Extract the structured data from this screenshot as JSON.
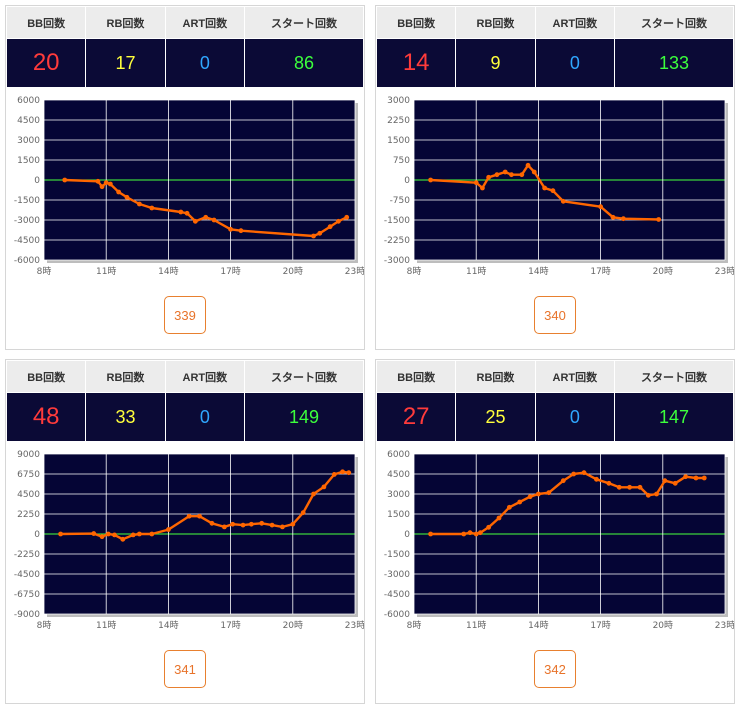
{
  "headers": {
    "bb": "BB回数",
    "rb": "RB回数",
    "art": "ART回数",
    "start": "スタート回数"
  },
  "colors": {
    "plot_bg": "#050535",
    "grid": "#ffffff",
    "zero_line": "#3cd23c",
    "series": "#ff6600",
    "bb": "#ff3b3b",
    "rb": "#ffff3c",
    "art": "#2fa6ff",
    "start": "#3cff3c",
    "button_border": "#e8802f"
  },
  "machines": [
    {
      "stats": {
        "bb": "20",
        "rb": "17",
        "art": "0",
        "start": "86"
      },
      "number": "339"
    },
    {
      "stats": {
        "bb": "14",
        "rb": "9",
        "art": "0",
        "start": "133"
      },
      "number": "340"
    },
    {
      "stats": {
        "bb": "48",
        "rb": "33",
        "art": "0",
        "start": "149"
      },
      "number": "341"
    },
    {
      "stats": {
        "bb": "27",
        "rb": "25",
        "art": "0",
        "start": "147"
      },
      "number": "342"
    }
  ],
  "chart_data": [
    {
      "type": "line",
      "xticks": [
        "8時",
        "11時",
        "14時",
        "17時",
        "20時",
        "23時"
      ],
      "yticks": [
        "6000",
        "4500",
        "3000",
        "1500",
        "0",
        "-1500",
        "-3000",
        "-4500",
        "-6000"
      ],
      "xlim": [
        8,
        23
      ],
      "ylim": [
        -6000,
        6000
      ],
      "grid": true,
      "x": [
        9.0,
        10.6,
        10.8,
        11.0,
        11.2,
        11.6,
        12.0,
        12.6,
        13.2,
        14.6,
        14.9,
        15.3,
        15.8,
        16.2,
        17.0,
        17.5,
        21.0,
        21.3,
        21.8,
        22.2,
        22.6
      ],
      "y": [
        0,
        -100,
        -500,
        -200,
        -300,
        -900,
        -1300,
        -1800,
        -2100,
        -2400,
        -2500,
        -3100,
        -2800,
        -3000,
        -3700,
        -3800,
        -4200,
        -4000,
        -3500,
        -3100,
        -2800
      ]
    },
    {
      "type": "line",
      "xticks": [
        "8時",
        "11時",
        "14時",
        "17時",
        "20時",
        "23時"
      ],
      "yticks": [
        "3000",
        "2250",
        "1500",
        "750",
        "0",
        "-750",
        "-1500",
        "-2250",
        "-3000"
      ],
      "xlim": [
        8,
        23
      ],
      "ylim": [
        -3000,
        3000
      ],
      "grid": true,
      "x": [
        8.8,
        11.0,
        11.3,
        11.6,
        12.0,
        12.4,
        12.7,
        13.2,
        13.5,
        13.8,
        14.3,
        14.7,
        15.2,
        17.0,
        17.6,
        18.1,
        19.8
      ],
      "y": [
        0,
        -100,
        -300,
        100,
        200,
        300,
        200,
        200,
        550,
        300,
        -300,
        -400,
        -800,
        -1000,
        -1400,
        -1450,
        -1480
      ]
    },
    {
      "type": "line",
      "xticks": [
        "8時",
        "11時",
        "14時",
        "17時",
        "20時",
        "23時"
      ],
      "yticks": [
        "9000",
        "6750",
        "4500",
        "2250",
        "0",
        "-2250",
        "-4500",
        "-6750",
        "-9000"
      ],
      "xlim": [
        8,
        23
      ],
      "ylim": [
        -9000,
        9000
      ],
      "grid": true,
      "x": [
        8.8,
        10.4,
        10.8,
        11.1,
        11.4,
        11.8,
        12.3,
        12.6,
        13.2,
        14.0,
        15.0,
        15.5,
        16.1,
        16.7,
        17.1,
        17.6,
        18.0,
        18.5,
        19.0,
        19.5,
        20.0,
        20.5,
        21.0,
        21.5,
        22.0,
        22.4,
        22.7
      ],
      "y": [
        0,
        50,
        -300,
        0,
        -100,
        -600,
        -100,
        0,
        0,
        500,
        2000,
        2000,
        1200,
        800,
        1100,
        1000,
        1100,
        1200,
        1000,
        800,
        1100,
        2400,
        4500,
        5300,
        6700,
        7000,
        6900
      ]
    },
    {
      "type": "line",
      "xticks": [
        "8時",
        "11時",
        "14時",
        "17時",
        "20時",
        "23時"
      ],
      "yticks": [
        "6000",
        "4500",
        "3000",
        "1500",
        "0",
        "-1500",
        "-3000",
        "-4500",
        "-6000"
      ],
      "xlim": [
        8,
        23
      ],
      "ylim": [
        -6000,
        6000
      ],
      "grid": true,
      "x": [
        8.8,
        10.4,
        10.7,
        11.0,
        11.2,
        11.6,
        12.1,
        12.6,
        13.1,
        13.6,
        14.0,
        14.5,
        15.2,
        15.7,
        16.2,
        16.8,
        17.4,
        17.9,
        18.4,
        18.9,
        19.3,
        19.7,
        20.1,
        20.6,
        21.1,
        21.6,
        22.0
      ],
      "y": [
        0,
        0,
        100,
        0,
        100,
        500,
        1200,
        2000,
        2400,
        2800,
        3000,
        3100,
        4000,
        4500,
        4600,
        4100,
        3800,
        3500,
        3500,
        3500,
        2900,
        3000,
        4000,
        3800,
        4300,
        4200,
        4200
      ]
    }
  ]
}
